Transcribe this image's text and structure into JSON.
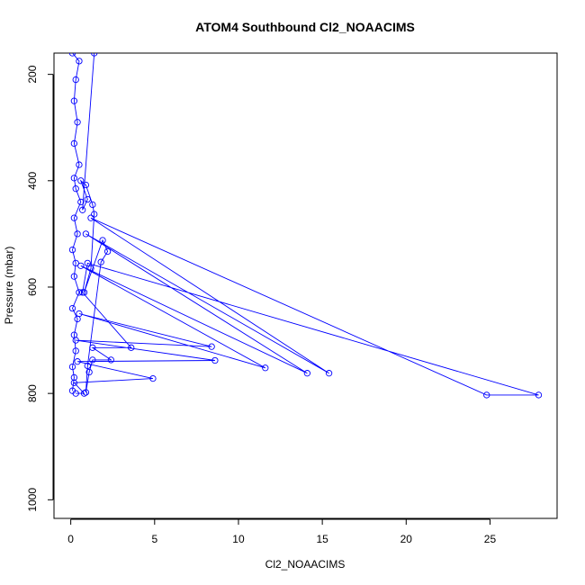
{
  "chart_data": {
    "type": "line",
    "title": "ATOM4 Southbound Cl2_NOAACIMS",
    "xlabel": "Cl2_NOAACIMS",
    "ylabel": "Pressure (mbar)",
    "xlim": [
      -1,
      29
    ],
    "ylim": [
      1035,
      160
    ],
    "y_reversed": true,
    "x_ticks": [
      0,
      5,
      10,
      15,
      20,
      25
    ],
    "y_ticks": [
      200,
      400,
      600,
      800,
      1000
    ],
    "grid": false,
    "legend": "none",
    "colors": {
      "series": "#0000ff",
      "axis": "#000000"
    },
    "series": [
      {
        "values": [
          {
            "x": 0.1,
            "y": 795
          },
          {
            "x": 0.2,
            "y": 770
          },
          {
            "x": 0.1,
            "y": 750
          },
          {
            "x": 0.3,
            "y": 720
          },
          {
            "x": 0.2,
            "y": 690
          },
          {
            "x": 0.4,
            "y": 660
          },
          {
            "x": 0.1,
            "y": 640
          },
          {
            "x": 0.5,
            "y": 610
          },
          {
            "x": 0.2,
            "y": 580
          },
          {
            "x": 0.3,
            "y": 555
          },
          {
            "x": 0.1,
            "y": 530
          },
          {
            "x": 0.4,
            "y": 500
          },
          {
            "x": 0.2,
            "y": 470
          },
          {
            "x": 0.6,
            "y": 440
          },
          {
            "x": 0.3,
            "y": 415
          },
          {
            "x": 0.2,
            "y": 395
          },
          {
            "x": 0.5,
            "y": 370
          },
          {
            "x": 0.2,
            "y": 330
          },
          {
            "x": 0.4,
            "y": 290
          },
          {
            "x": 0.2,
            "y": 250
          },
          {
            "x": 0.3,
            "y": 210
          },
          {
            "x": 0.5,
            "y": 175
          },
          {
            "x": 0.1,
            "y": 160
          }
        ]
      },
      {
        "values": [
          {
            "x": 0.3,
            "y": 800
          },
          {
            "x": 0.8,
            "y": 800
          },
          {
            "x": 0.2,
            "y": 780
          },
          {
            "x": 4.9,
            "y": 772
          },
          {
            "x": 0.4,
            "y": 740
          },
          {
            "x": 8.6,
            "y": 738
          },
          {
            "x": 0.3,
            "y": 700
          },
          {
            "x": 8.4,
            "y": 712
          },
          {
            "x": 0.5,
            "y": 650
          },
          {
            "x": 11.6,
            "y": 752
          },
          {
            "x": 0.6,
            "y": 560
          },
          {
            "x": 14.1,
            "y": 762
          },
          {
            "x": 0.9,
            "y": 500
          },
          {
            "x": 15.4,
            "y": 762
          },
          {
            "x": 1.2,
            "y": 470
          },
          {
            "x": 24.8,
            "y": 803
          },
          {
            "x": 27.9,
            "y": 803
          },
          {
            "x": 1.0,
            "y": 555
          },
          {
            "x": 0.7,
            "y": 610
          },
          {
            "x": 3.6,
            "y": 714
          },
          {
            "x": 1.3,
            "y": 714
          },
          {
            "x": 2.4,
            "y": 737
          },
          {
            "x": 1.3,
            "y": 737
          },
          {
            "x": 1.1,
            "y": 760
          },
          {
            "x": 0.9,
            "y": 798
          },
          {
            "x": 1.0,
            "y": 748
          },
          {
            "x": 1.8,
            "y": 553
          },
          {
            "x": 2.2,
            "y": 533
          },
          {
            "x": 1.9,
            "y": 512
          },
          {
            "x": 0.8,
            "y": 610
          },
          {
            "x": 1.2,
            "y": 565
          },
          {
            "x": 1.4,
            "y": 463
          },
          {
            "x": 1.3,
            "y": 445
          },
          {
            "x": 0.9,
            "y": 408
          },
          {
            "x": 0.6,
            "y": 400
          },
          {
            "x": 1.0,
            "y": 435
          },
          {
            "x": 0.7,
            "y": 455
          },
          {
            "x": 1.4,
            "y": 160
          }
        ]
      }
    ]
  }
}
